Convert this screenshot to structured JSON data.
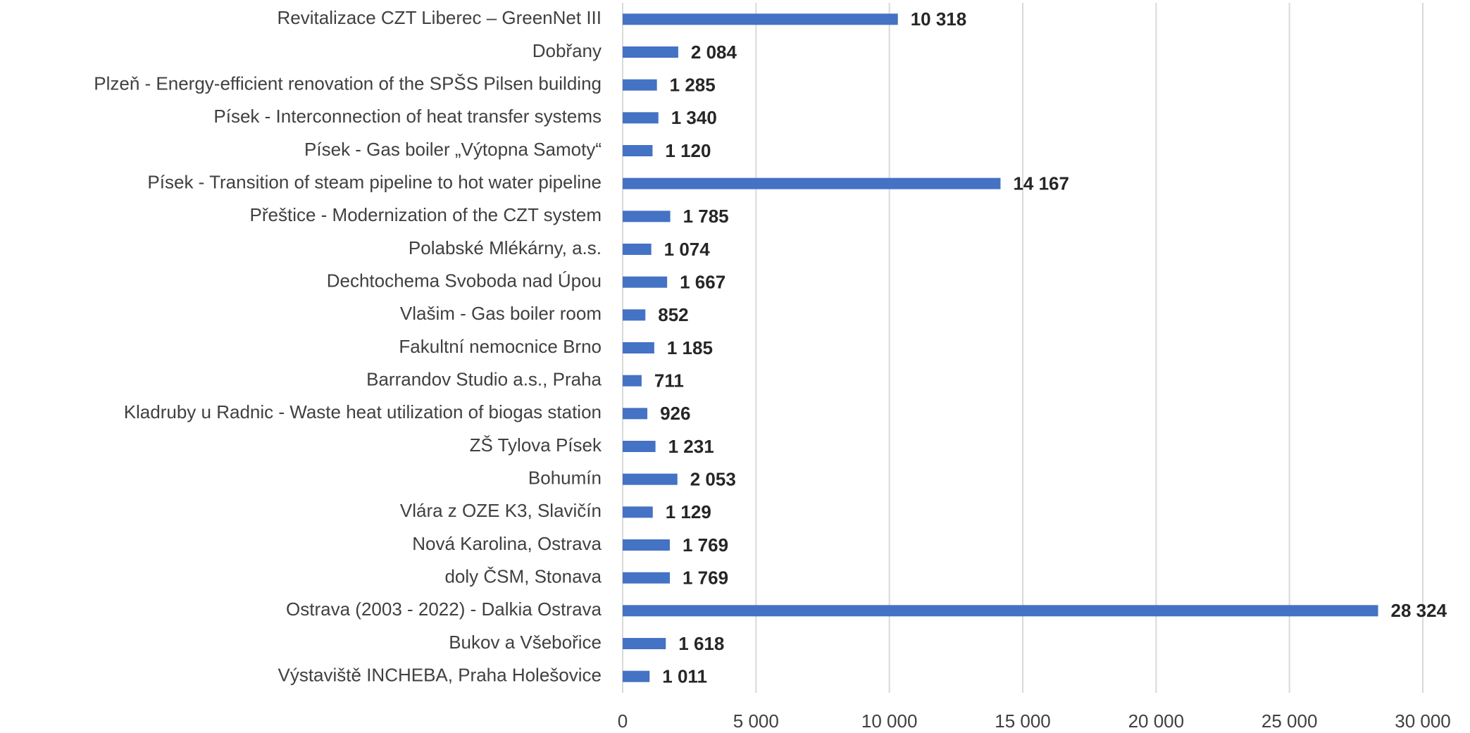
{
  "chart_data": {
    "type": "bar",
    "orientation": "horizontal",
    "categories": [
      "Revitalizace CZT Liberec – GreenNet III",
      "Dobřany",
      "Plzeň - Energy-efficient renovation of the SPŠS Pilsen building",
      "Písek - Interconnection of heat transfer systems",
      "Písek - Gas boiler „Výtopna Samoty“",
      "Písek - Transition of steam pipeline to hot water pipeline",
      "Přeštice - Modernization of the CZT system",
      "Polabské Mlékárny, a.s.",
      "Dechtochema Svoboda nad Úpou",
      "Vlašim - Gas boiler room",
      "Fakultní nemocnice Brno",
      "Barrandov Studio a.s., Praha",
      "Kladruby u Radnic - Waste heat utilization of biogas station",
      "ZŠ Tylova Písek",
      "Bohumín",
      "Vlára z OZE K3, Slavičín",
      "Nová Karolina, Ostrava",
      "doly ČSM, Stonava",
      "Ostrava (2003 - 2022) - Dalkia Ostrava",
      "Bukov a Všebořice",
      "Výstaviště INCHEBA, Praha Holešovice"
    ],
    "values": [
      10318,
      2084,
      1285,
      1340,
      1120,
      14167,
      1785,
      1074,
      1667,
      852,
      1185,
      711,
      926,
      1231,
      2053,
      1129,
      1769,
      1769,
      28324,
      1618,
      1011
    ],
    "value_labels": [
      "10 318",
      "2 084",
      "1 285",
      "1 340",
      "1 120",
      "14 167",
      "1 785",
      "1 074",
      "1 667",
      "852",
      "1 185",
      "711",
      "926",
      "1 231",
      "2 053",
      "1 129",
      "1 769",
      "1 769",
      "28 324",
      "1 618",
      "1 011"
    ],
    "color": "#4472c4",
    "xlim": [
      0,
      30000
    ],
    "xticks": [
      0,
      {
        "value": 5000,
        "label": "5 000"
      },
      {
        "value": 10000,
        "label": "10 000"
      },
      {
        "value": 15000,
        "label": "15 000"
      },
      {
        "value": 20000,
        "label": "20 000"
      },
      {
        "value": 25000,
        "label": "25 000"
      },
      {
        "value": 30000,
        "label": "30 000"
      }
    ],
    "grid": true
  }
}
